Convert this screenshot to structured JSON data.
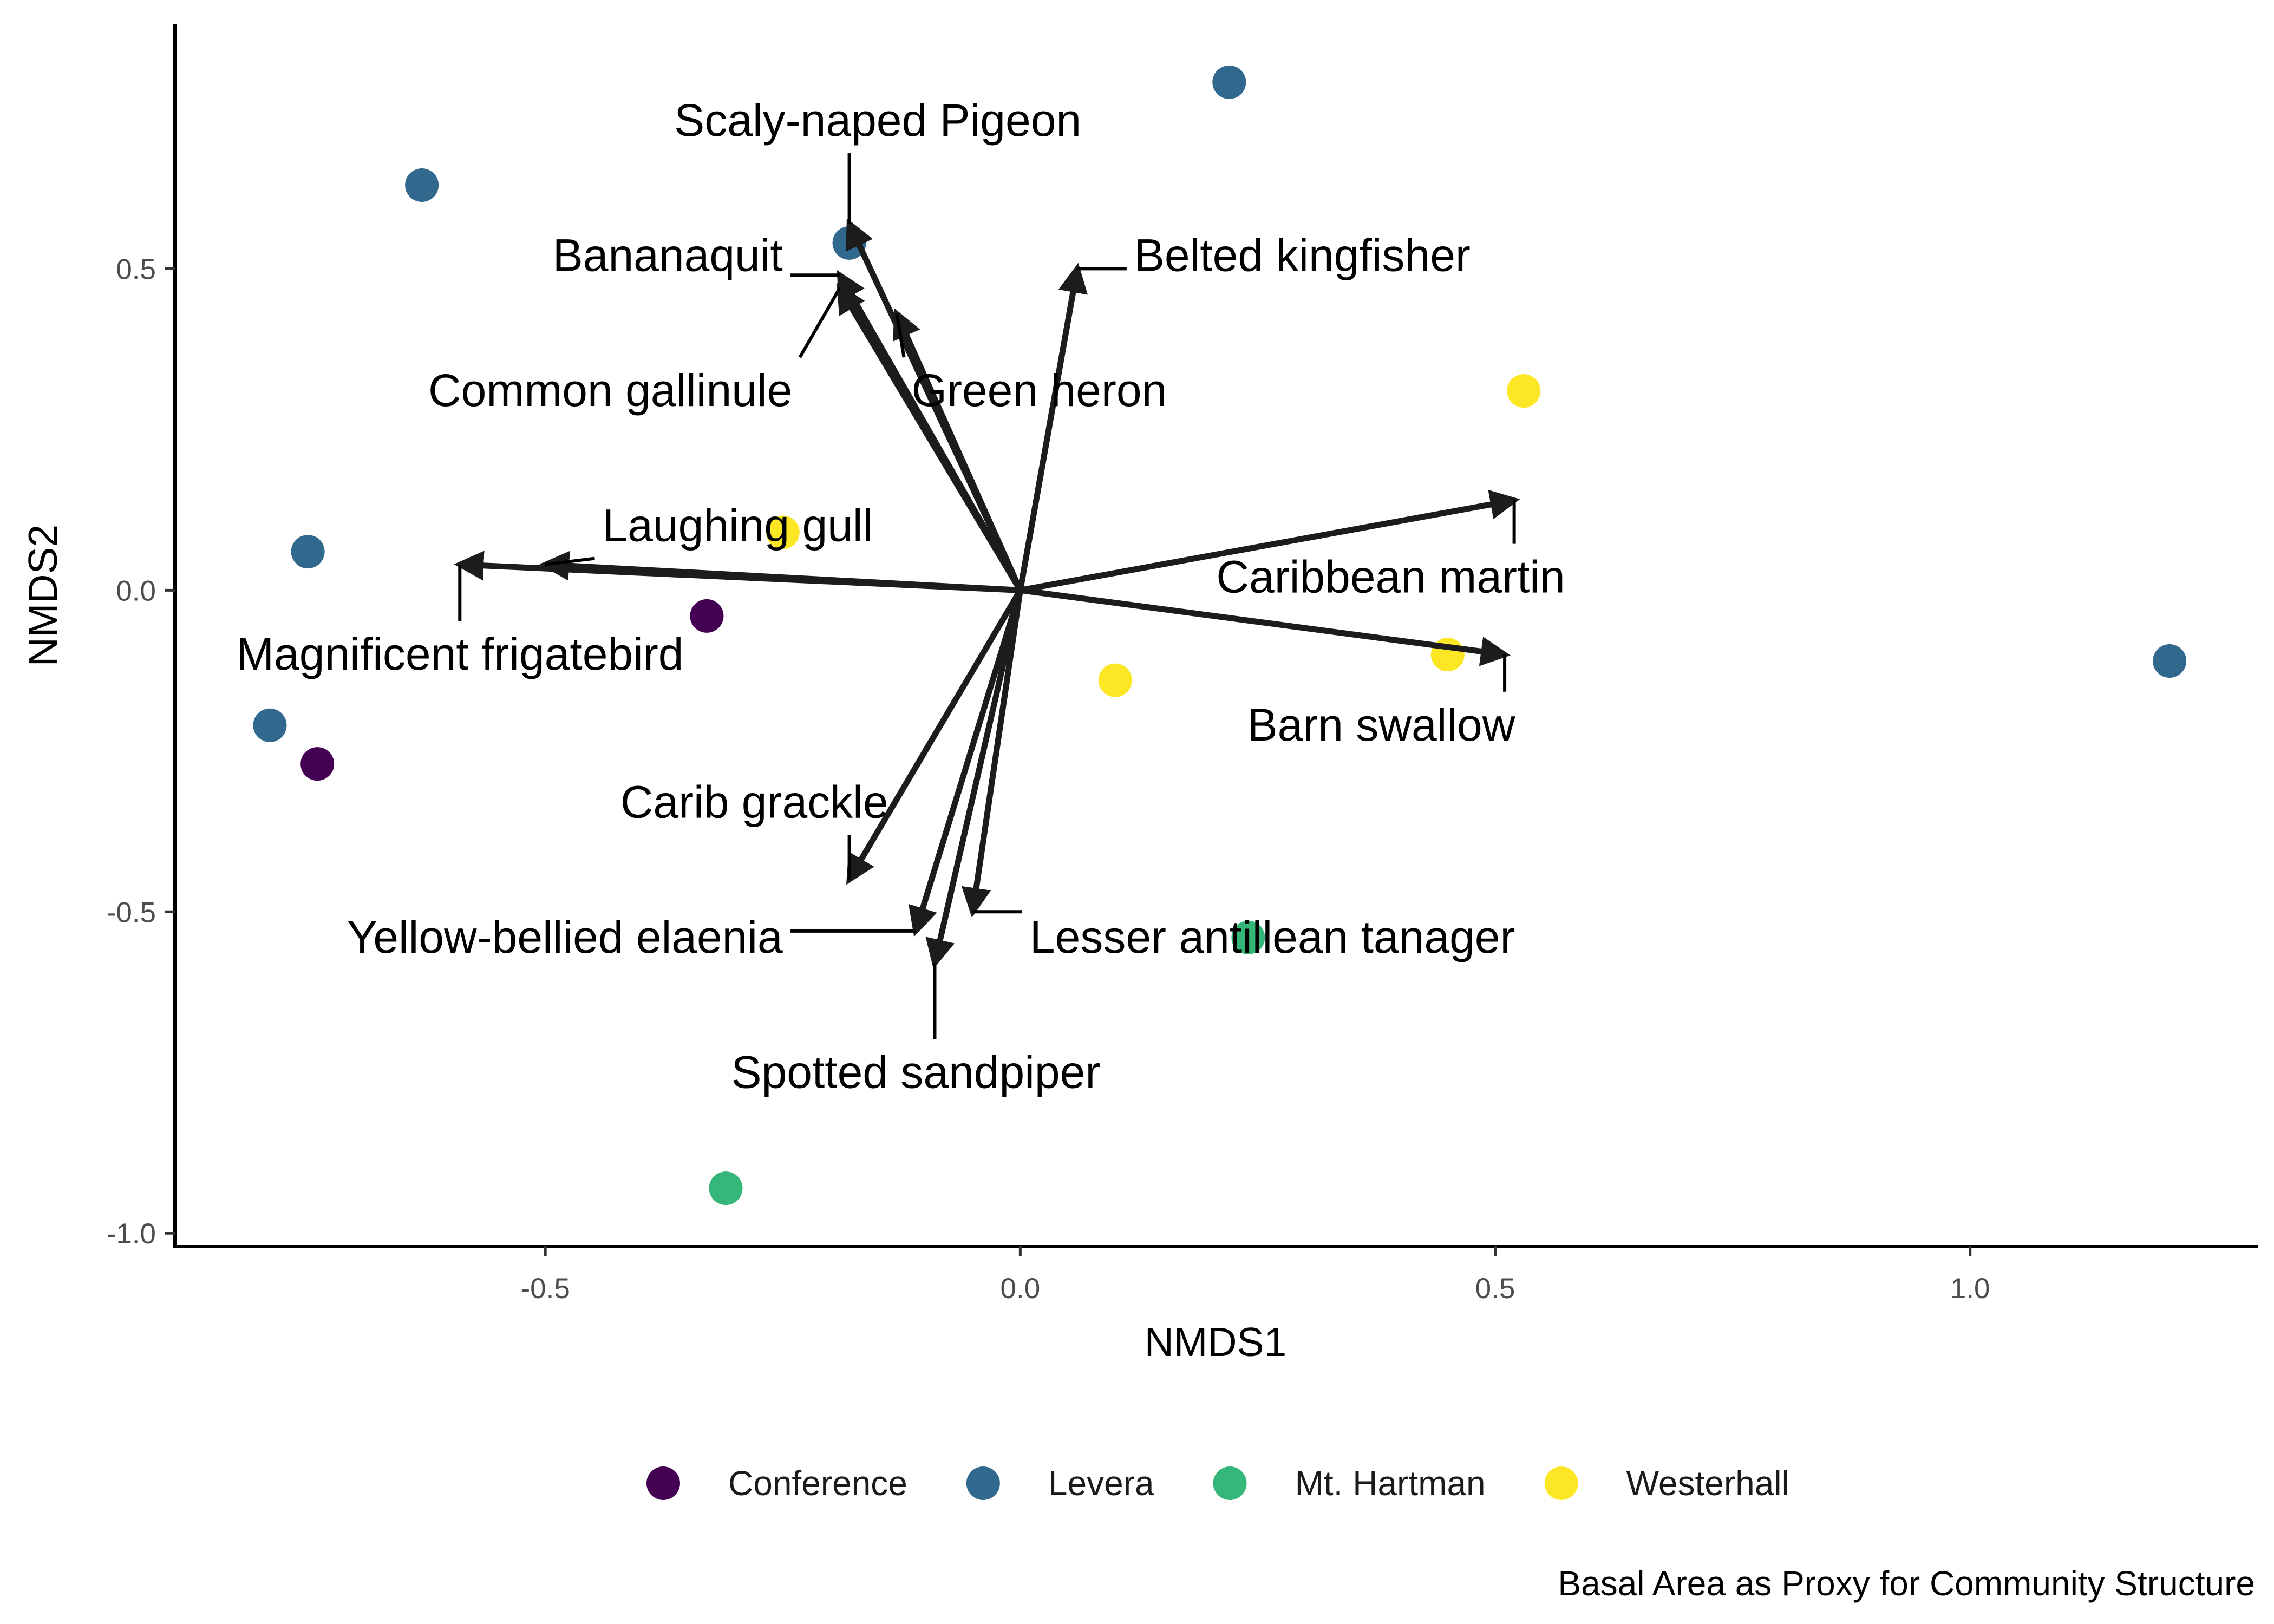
{
  "chart_data": {
    "type": "scatter",
    "title": "",
    "caption": "Basal Area as Proxy for Community Structure",
    "xlabel": "NMDS1",
    "ylabel": "NMDS2",
    "xlim": [
      -0.89,
      1.3
    ],
    "ylim": [
      -1.02,
      0.88
    ],
    "x_ticks": [
      -0.5,
      0.0,
      0.5,
      1.0
    ],
    "x_tick_labels": [
      "-0.5",
      "0.0",
      "0.5",
      "1.0"
    ],
    "y_ticks": [
      -1.0,
      -0.5,
      0.0,
      0.5
    ],
    "y_tick_labels": [
      "-1.0",
      "-0.5",
      "0.0",
      "0.5"
    ],
    "grid": false,
    "legend_position": "bottom",
    "groups": [
      {
        "name": "Conference",
        "color": "#440154"
      },
      {
        "name": "Levera",
        "color": "#31688E"
      },
      {
        "name": "Mt. Hartman",
        "color": "#35B779"
      },
      {
        "name": "Westerhall",
        "color": "#FDE725"
      }
    ],
    "points": [
      {
        "group": "Levera",
        "x": 0.22,
        "y": 0.79
      },
      {
        "group": "Levera",
        "x": -0.63,
        "y": 0.63
      },
      {
        "group": "Levera",
        "x": -0.18,
        "y": 0.54
      },
      {
        "group": "Levera",
        "x": -0.75,
        "y": 0.06
      },
      {
        "group": "Levera",
        "x": -0.79,
        "y": -0.21
      },
      {
        "group": "Levera",
        "x": 1.21,
        "y": -0.11
      },
      {
        "group": "Westerhall",
        "x": 0.53,
        "y": 0.31
      },
      {
        "group": "Westerhall",
        "x": -0.25,
        "y": 0.09
      },
      {
        "group": "Westerhall",
        "x": 0.1,
        "y": -0.14
      },
      {
        "group": "Westerhall",
        "x": 0.45,
        "y": -0.1
      },
      {
        "group": "Conference",
        "x": -0.33,
        "y": -0.04
      },
      {
        "group": "Conference",
        "x": -0.74,
        "y": -0.27
      },
      {
        "group": "Mt. Hartman",
        "x": 0.24,
        "y": -0.54
      },
      {
        "group": "Mt. Hartman",
        "x": -0.31,
        "y": -0.93
      }
    ],
    "vectors": [
      {
        "label": "Scaly-naped Pigeon",
        "x": -0.18,
        "y": 0.57,
        "label_x": -0.15,
        "label_y": 0.73,
        "anchor": "middle"
      },
      {
        "label": "Bananaquit",
        "x": -0.19,
        "y": 0.49,
        "label_x": -0.25,
        "label_y": 0.52,
        "anchor": "end"
      },
      {
        "label": "Belted kingfisher",
        "x": 0.06,
        "y": 0.5,
        "label_x": 0.12,
        "label_y": 0.52,
        "anchor": "start"
      },
      {
        "label": "Common gallinule",
        "x": -0.19,
        "y": 0.47,
        "label_x": -0.24,
        "label_y": 0.31,
        "anchor": "end"
      },
      {
        "label": "Green heron",
        "x": -0.13,
        "y": 0.43,
        "label_x": 0.02,
        "label_y": 0.31,
        "anchor": "middle"
      },
      {
        "label": "Laughing gull",
        "x": -0.5,
        "y": 0.04,
        "label_x": -0.44,
        "label_y": 0.1,
        "anchor": "start"
      },
      {
        "label": "Magnificent frigatebird",
        "x": -0.59,
        "y": 0.04,
        "label_x": -0.59,
        "label_y": -0.1,
        "anchor": "middle"
      },
      {
        "label": "Caribbean martin",
        "x": 0.52,
        "y": 0.14,
        "label_x": 0.39,
        "label_y": 0.02,
        "anchor": "middle"
      },
      {
        "label": "Barn swallow",
        "x": 0.51,
        "y": -0.1,
        "label_x": 0.38,
        "label_y": -0.21,
        "anchor": "middle"
      },
      {
        "label": "Carib grackle",
        "x": -0.18,
        "y": -0.45,
        "label_x": -0.28,
        "label_y": -0.33,
        "anchor": "middle"
      },
      {
        "label": "Yellow-bellied elaenia",
        "x": -0.11,
        "y": -0.53,
        "label_x": -0.25,
        "label_y": -0.54,
        "anchor": "end"
      },
      {
        "label": "Lesser antillean tanager",
        "x": -0.05,
        "y": -0.5,
        "label_x": 0.01,
        "label_y": -0.54,
        "anchor": "start"
      },
      {
        "label": "Spotted sandpiper",
        "x": -0.09,
        "y": -0.58,
        "label_x": -0.11,
        "label_y": -0.75,
        "anchor": "middle"
      }
    ]
  }
}
